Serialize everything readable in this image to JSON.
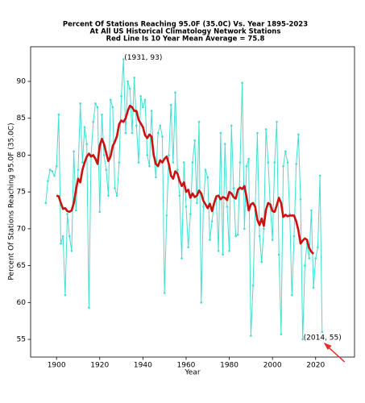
{
  "chart_data": {
    "type": "line",
    "title": [
      "Percent Of Stations Reaching 95.0F (35.0C) Vs. Year 1895-2023",
      "At All US Historical Climatology Network Stations",
      "Red Line Is 10 Year Mean  Average = 75.8"
    ],
    "xlabel": "Year",
    "ylabel": "Percent Of Stations Reaching 95.0F (35.0C)",
    "x": [
      1895,
      1896,
      1897,
      1898,
      1899,
      1900,
      1901,
      1902,
      1903,
      1904,
      1905,
      1906,
      1907,
      1908,
      1909,
      1910,
      1911,
      1912,
      1913,
      1914,
      1915,
      1916,
      1917,
      1918,
      1919,
      1920,
      1921,
      1922,
      1923,
      1924,
      1925,
      1926,
      1927,
      1928,
      1929,
      1930,
      1931,
      1932,
      1933,
      1934,
      1935,
      1936,
      1937,
      1938,
      1939,
      1940,
      1941,
      1942,
      1943,
      1944,
      1945,
      1946,
      1947,
      1948,
      1949,
      1950,
      1951,
      1952,
      1953,
      1954,
      1955,
      1956,
      1957,
      1958,
      1959,
      1960,
      1961,
      1962,
      1963,
      1964,
      1965,
      1966,
      1967,
      1968,
      1969,
      1970,
      1971,
      1972,
      1973,
      1974,
      1975,
      1976,
      1977,
      1978,
      1979,
      1980,
      1981,
      1982,
      1983,
      1984,
      1985,
      1986,
      1987,
      1988,
      1989,
      1990,
      1991,
      1992,
      1993,
      1994,
      1995,
      1996,
      1997,
      1998,
      1999,
      2000,
      2001,
      2002,
      2003,
      2004,
      2005,
      2006,
      2007,
      2008,
      2009,
      2010,
      2011,
      2012,
      2013,
      2014,
      2015,
      2016,
      2017,
      2018,
      2019,
      2020,
      2021,
      2022,
      2023
    ],
    "series": [
      {
        "color": "#40e0d0",
        "markers": true,
        "values": [
          73.5,
          76.5,
          78,
          77.8,
          77.2,
          78.5,
          85.5,
          68,
          69,
          61,
          72,
          69,
          67,
          80.5,
          72.5,
          78,
          87,
          79,
          83.8,
          81.5,
          59.3,
          80,
          84.5,
          87,
          86.5,
          72.3,
          85.5,
          80,
          78,
          74.5,
          87.5,
          86.5,
          75.5,
          74.5,
          79,
          88,
          93,
          83,
          90,
          89,
          83,
          90.5,
          84,
          79,
          88,
          86.5,
          87.5,
          80,
          78.5,
          86,
          80,
          77,
          83,
          84,
          82.5,
          61.3,
          71.8,
          80,
          86.8,
          79,
          88.5,
          78,
          74.5,
          66,
          79,
          73,
          67.5,
          72,
          79,
          82,
          73.5,
          84.5,
          60,
          73,
          78,
          77,
          68.5,
          71,
          73.5,
          74,
          67,
          83,
          66.5,
          81.5,
          73,
          67,
          84,
          75.5,
          69,
          69.2,
          79,
          89.8,
          70,
          78.5,
          79.5,
          55.5,
          62.3,
          72.5,
          83,
          69,
          65.5,
          70,
          83.5,
          79,
          73,
          68.5,
          79,
          84.5,
          66.5,
          55.7,
          78.5,
          80.5,
          79,
          72,
          61,
          69,
          78.8,
          82.8,
          74,
          55,
          65,
          68,
          66,
          72.5,
          62,
          66,
          67.5,
          77.2,
          56
        ]
      },
      {
        "color": "#cc1111",
        "markers": false,
        "values": [
          null,
          null,
          null,
          null,
          null,
          74.5,
          74.4,
          73.5,
          72.7,
          72.8,
          72.4,
          72.3,
          72.5,
          73.5,
          75.3,
          76.8,
          76.3,
          78,
          79,
          79.8,
          80.2,
          79.8,
          80,
          79.5,
          78.8,
          81.3,
          82.2,
          81.5,
          80.3,
          79.2,
          79.8,
          81.2,
          81.8,
          82.6,
          84.2,
          84.7,
          84.5,
          85,
          86,
          86.7,
          86.5,
          86,
          86,
          84.8,
          84.3,
          83.8,
          82.7,
          82.3,
          82.8,
          82.5,
          80,
          78.8,
          78.5,
          79.3,
          79,
          79.5,
          79.8,
          78.8,
          77.2,
          76.8,
          77.8,
          77.5,
          76.5,
          75.8,
          76.3,
          75,
          75.3,
          74.2,
          74.8,
          74.3,
          74.5,
          75.2,
          74.8,
          73.8,
          73.3,
          72.8,
          73.4,
          72.4,
          73.5,
          74.4,
          74.5,
          74,
          74.3,
          74.2,
          73.9,
          75,
          74.8,
          74.3,
          74.1,
          75.3,
          75.6,
          75.4,
          75.8,
          74.3,
          72.5,
          73.3,
          73.5,
          73,
          71.2,
          70.5,
          71.4,
          70.4,
          72.6,
          73.5,
          73.3,
          72.4,
          72.3,
          73.2,
          74.2,
          73.5,
          71.6,
          71.9,
          71.7,
          71.8,
          71.8,
          71.8,
          71,
          69.8,
          68,
          68.4,
          68.7,
          68.5,
          67.4,
          66.9,
          66.6,
          null,
          null,
          null,
          null
        ]
      }
    ],
    "annotations": [
      {
        "text": "(1931, 93)",
        "x": 1931,
        "y": 93,
        "arrow": false
      },
      {
        "text": "(2014, 55)",
        "x": 2014,
        "y": 55,
        "arrow": true
      }
    ],
    "xlim": [
      1888,
      2038
    ],
    "ylim": [
      52.6,
      94.7
    ],
    "xticks": [
      1900,
      1920,
      1940,
      1960,
      1980,
      2000,
      2020
    ],
    "yticks": [
      55,
      60,
      65,
      70,
      75,
      80,
      85,
      90
    ],
    "grid": false
  }
}
